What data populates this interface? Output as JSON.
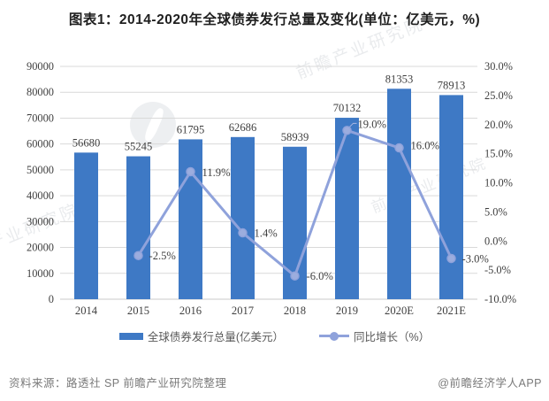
{
  "title": "图表1：2014-2020年全球债券发行总量及变化(单位：亿美元，%)",
  "chart_data": {
    "type": "bar+line combo",
    "categories": [
      "2014",
      "2015",
      "2016",
      "2017",
      "2018",
      "2019",
      "2020E",
      "2021E"
    ],
    "series": [
      {
        "name": "全球债券发行总量(亿美元）",
        "type": "bar",
        "axis": "left",
        "color": "#3e79c5",
        "values": [
          56680,
          55245,
          61795,
          62686,
          58939,
          70132,
          81353,
          78913
        ],
        "labels": [
          "56680",
          "55245",
          "61795",
          "62686",
          "58939",
          "70132",
          "81353",
          "78913"
        ]
      },
      {
        "name": "同比增长（%）",
        "type": "line",
        "axis": "right",
        "color": "#8fa2db",
        "values": [
          null,
          -2.5,
          11.9,
          1.4,
          -6.0,
          19.0,
          16.0,
          -3.0
        ],
        "labels": [
          null,
          "-2.5%",
          "11.9%",
          "1.4%",
          "-6.0%",
          "19.0%",
          "16.0%",
          "-3.0%"
        ]
      }
    ],
    "left_axis": {
      "min": 0,
      "max": 90000,
      "step": 10000,
      "ticks": [
        "90000",
        "80000",
        "70000",
        "60000",
        "50000",
        "40000",
        "30000",
        "20000",
        "10000",
        "0"
      ]
    },
    "right_axis": {
      "min": -10,
      "max": 30,
      "step": 5,
      "ticks": [
        "30.0%",
        "25.0%",
        "20.0%",
        "15.0%",
        "10.0%",
        "5.0%",
        "0.0%",
        "-5.0%",
        "-10.0%"
      ]
    },
    "grid": true,
    "legend_position": "bottom",
    "grid_color": "#d9d9d9",
    "label_color": "#3f3f3f"
  },
  "footer": {
    "source": "资料来源：路透社 SP 前瞻产业研究院整理",
    "brand": "@前瞻经济学人APP"
  },
  "watermark": {
    "text": "前瞻产业研究院"
  }
}
